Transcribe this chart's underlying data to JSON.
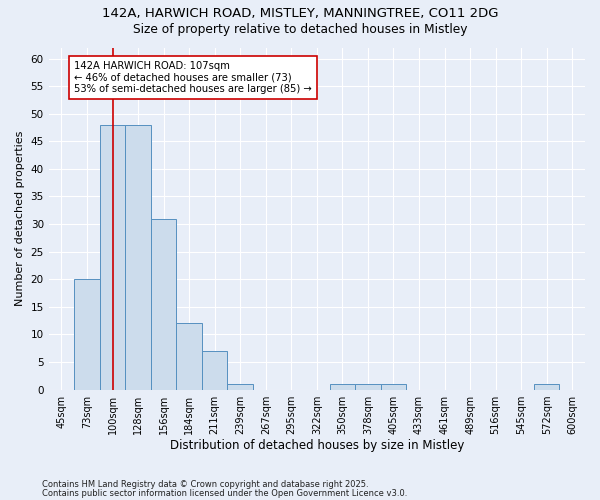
{
  "title1": "142A, HARWICH ROAD, MISTLEY, MANNINGTREE, CO11 2DG",
  "title2": "Size of property relative to detached houses in Mistley",
  "xlabel": "Distribution of detached houses by size in Mistley",
  "ylabel": "Number of detached properties",
  "bar_color": "#ccdcec",
  "bar_edge_color": "#5590c0",
  "bar_edge_width": 0.7,
  "categories": [
    "45sqm",
    "73sqm",
    "100sqm",
    "128sqm",
    "156sqm",
    "184sqm",
    "211sqm",
    "239sqm",
    "267sqm",
    "295sqm",
    "322sqm",
    "350sqm",
    "378sqm",
    "405sqm",
    "433sqm",
    "461sqm",
    "489sqm",
    "516sqm",
    "545sqm",
    "572sqm",
    "600sqm"
  ],
  "values": [
    0,
    20,
    48,
    48,
    31,
    12,
    7,
    1,
    0,
    0,
    0,
    1,
    1,
    1,
    0,
    0,
    0,
    0,
    0,
    1,
    0
  ],
  "red_line_index": 2,
  "red_line_color": "#cc0000",
  "annotation_text": "142A HARWICH ROAD: 107sqm\n← 46% of detached houses are smaller (73)\n53% of semi-detached houses are larger (85) →",
  "ylim": [
    0,
    62
  ],
  "yticks": [
    0,
    5,
    10,
    15,
    20,
    25,
    30,
    35,
    40,
    45,
    50,
    55,
    60
  ],
  "background_color": "#e8eef8",
  "plot_bg_color": "#e8eef8",
  "grid_color": "#ffffff",
  "footer1": "Contains HM Land Registry data © Crown copyright and database right 2025.",
  "footer2": "Contains public sector information licensed under the Open Government Licence v3.0."
}
